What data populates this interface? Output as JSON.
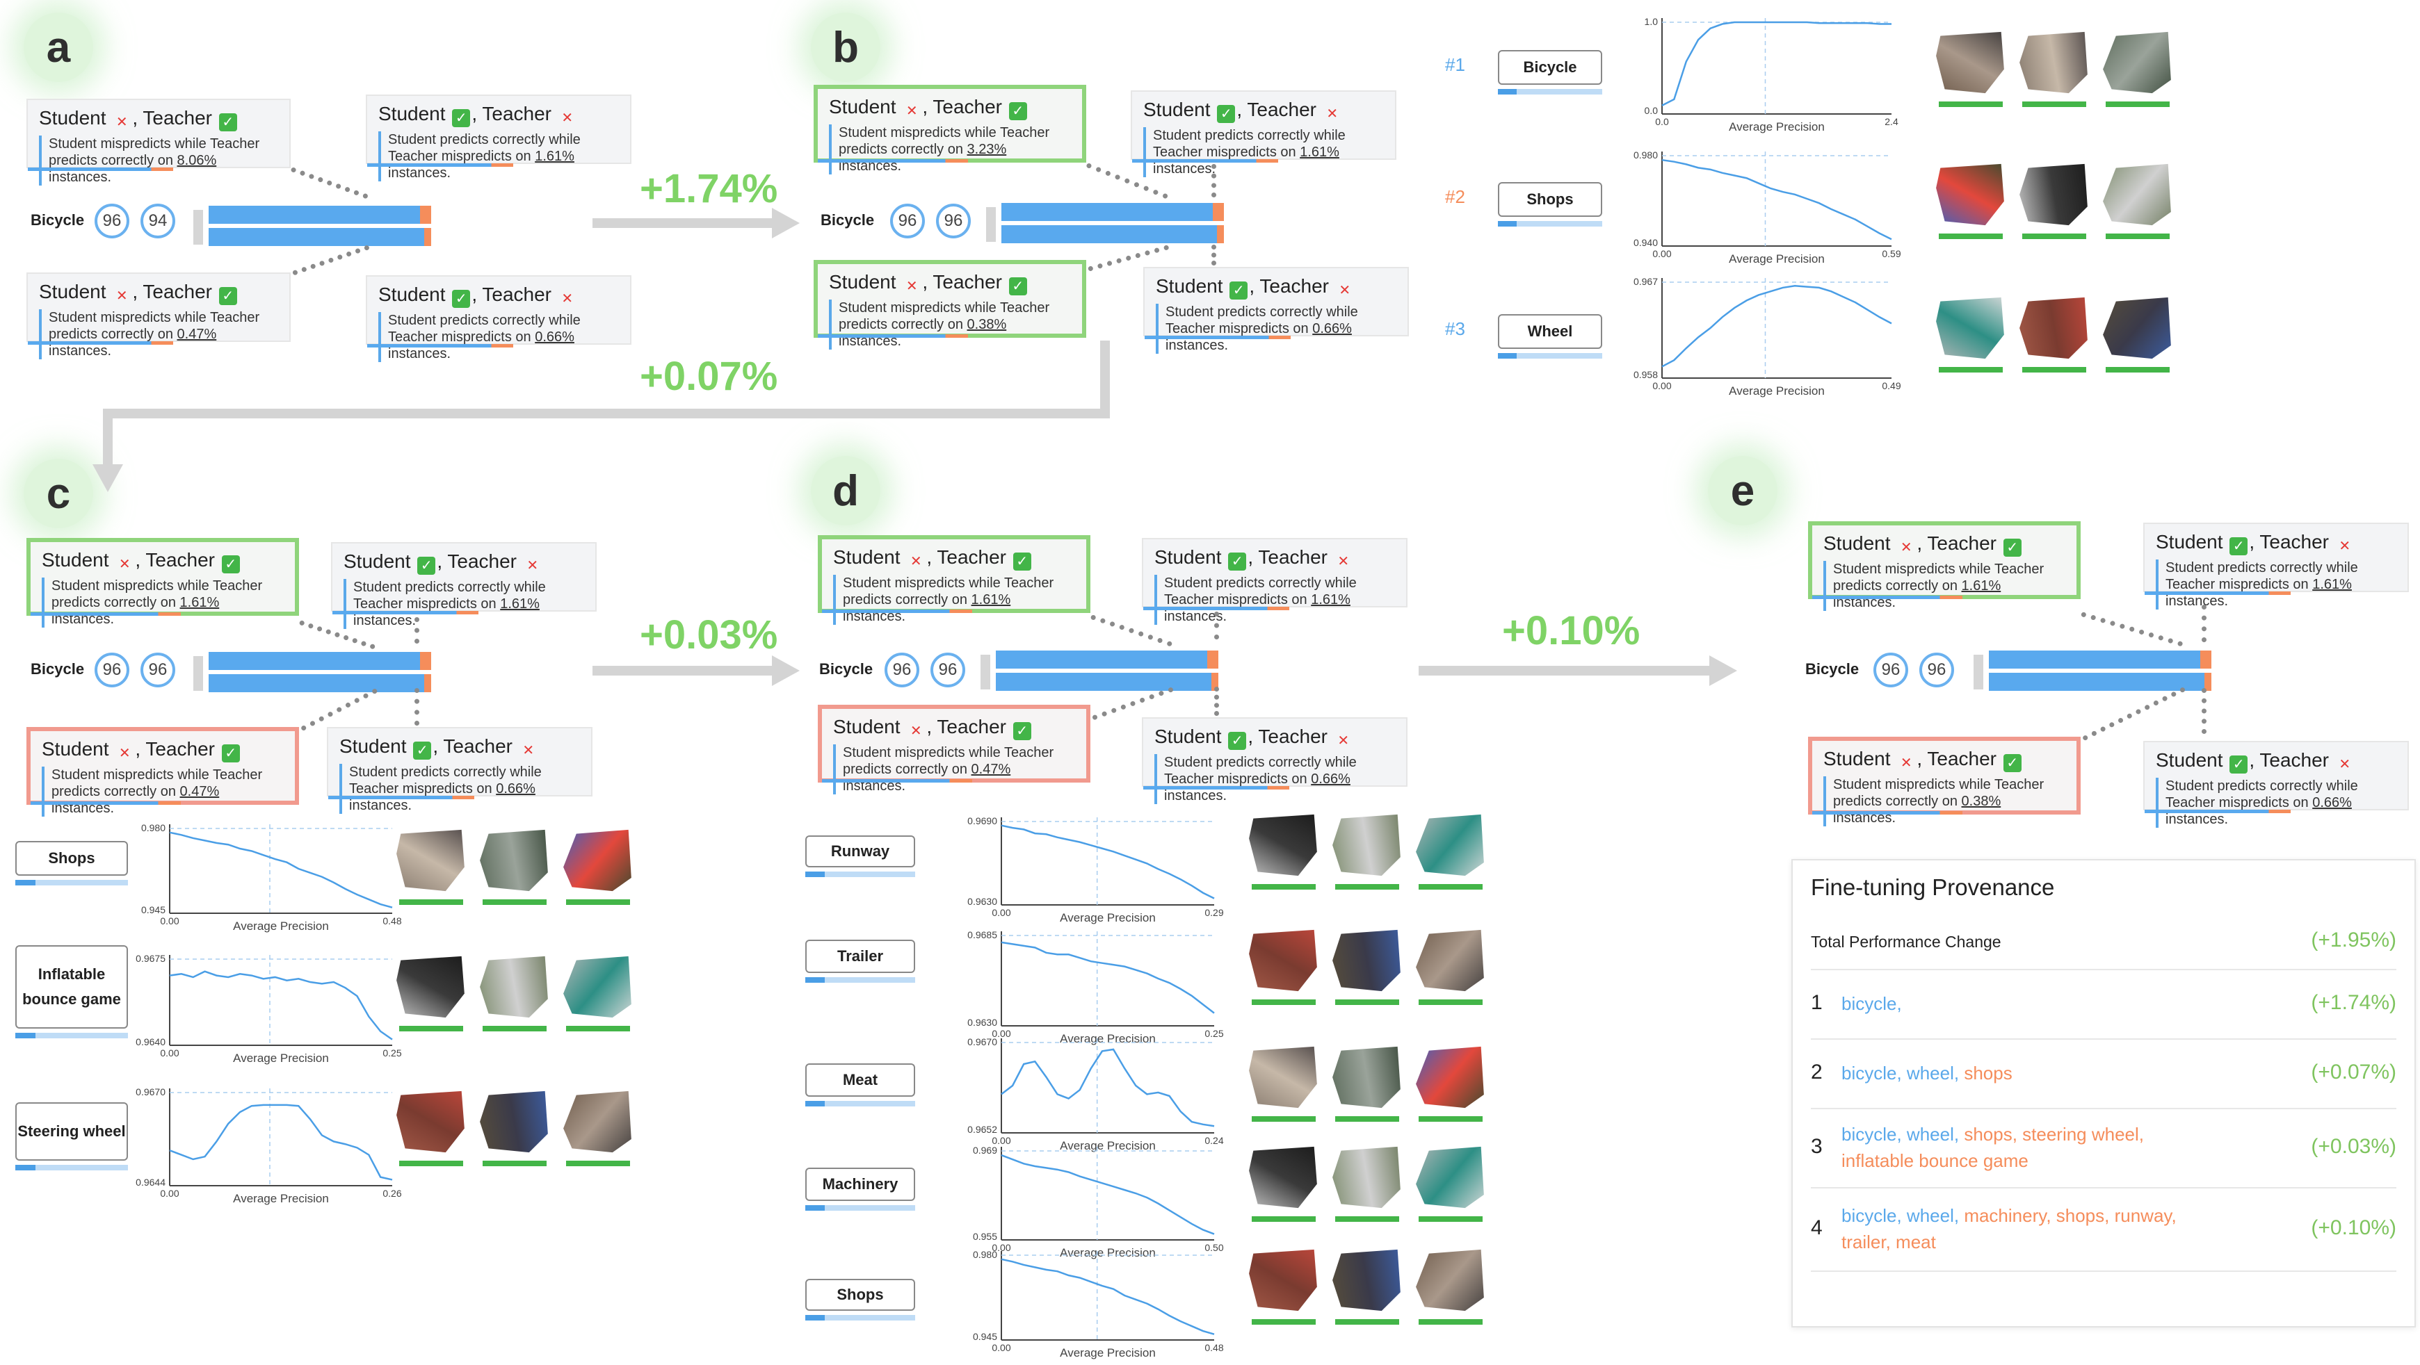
{
  "steps": [
    "a",
    "b",
    "c",
    "d",
    "e"
  ],
  "gains": [
    "+1.74%",
    "+0.07%",
    "+0.03%",
    "+0.10%"
  ],
  "row_label": "Bicycle",
  "panels": {
    "a": {
      "rings": [
        "96",
        "94"
      ],
      "cards": [
        {
          "title_pre": "Student ",
          "mark1": "✕",
          "title_mid": ", Teacher ",
          "mark2": "✓",
          "desc_pre": "Student mispredicts while Teacher predicts correctly on ",
          "pct": "8.06%",
          "desc_post": " instances."
        },
        {
          "title_pre": "Student ",
          "mark1": "✓",
          "title_mid": ", Teacher ",
          "mark2": "✕",
          "desc_pre": "Student predicts correctly while Teacher mispredicts on ",
          "pct": "1.61%",
          "desc_post": " instances."
        },
        {
          "title_pre": "Student ",
          "mark1": "✕",
          "title_mid": ", Teacher ",
          "mark2": "✓",
          "desc_pre": "Student mispredicts while Teacher predicts correctly on ",
          "pct": "0.47%",
          "desc_post": " instances."
        },
        {
          "title_pre": "Student ",
          "mark1": "✓",
          "title_mid": ", Teacher ",
          "mark2": "✕",
          "desc_pre": "Student predicts correctly while Teacher mispredicts on ",
          "pct": "0.66%",
          "desc_post": " instances."
        }
      ]
    },
    "b": {
      "rings": [
        "96",
        "96"
      ],
      "cards": [
        {
          "title_pre": "Student ",
          "mark1": "✕",
          "title_mid": ", Teacher ",
          "mark2": "✓",
          "desc_pre": "Student mispredicts while Teacher predicts correctly on ",
          "pct": "3.23%",
          "desc_post": " instances."
        },
        {
          "title_pre": "Student ",
          "mark1": "✓",
          "title_mid": ", Teacher ",
          "mark2": "✕",
          "desc_pre": "Student predicts correctly while Teacher mispredicts on ",
          "pct": "1.61%",
          "desc_post": " instances."
        },
        {
          "title_pre": "Student ",
          "mark1": "✕",
          "title_mid": ", Teacher ",
          "mark2": "✓",
          "desc_pre": "Student mispredicts while Teacher predicts correctly on ",
          "pct": "0.38%",
          "desc_post": " instances."
        },
        {
          "title_pre": "Student ",
          "mark1": "✓",
          "title_mid": ", Teacher ",
          "mark2": "✕",
          "desc_pre": "Student predicts correctly while Teacher mispredicts on ",
          "pct": "0.66%",
          "desc_post": " instances."
        }
      ]
    },
    "c": {
      "rings": [
        "96",
        "96"
      ],
      "cards": [
        {
          "title_pre": "Student ",
          "mark1": "✕",
          "title_mid": ", Teacher ",
          "mark2": "✓",
          "desc_pre": "Student mispredicts while Teacher predicts correctly on ",
          "pct": "1.61%",
          "desc_post": " instances."
        },
        {
          "title_pre": "Student ",
          "mark1": "✓",
          "title_mid": ", Teacher ",
          "mark2": "✕",
          "desc_pre": "Student predicts correctly while Teacher mispredicts on ",
          "pct": "1.61%",
          "desc_post": " instances."
        },
        {
          "title_pre": "Student ",
          "mark1": "✕",
          "title_mid": ", Teacher ",
          "mark2": "✓",
          "desc_pre": "Student mispredicts while Teacher predicts correctly on ",
          "pct": "0.47%",
          "desc_post": " instances."
        },
        {
          "title_pre": "Student ",
          "mark1": "✓",
          "title_mid": ", Teacher ",
          "mark2": "✕",
          "desc_pre": "Student predicts correctly while Teacher mispredicts on ",
          "pct": "0.66%",
          "desc_post": " instances."
        }
      ]
    },
    "d": {
      "rings": [
        "96",
        "96"
      ],
      "cards": [
        {
          "title_pre": "Student ",
          "mark1": "✕",
          "title_mid": ", Teacher ",
          "mark2": "✓",
          "desc_pre": "Student mispredicts while Teacher predicts correctly on ",
          "pct": "1.61%",
          "desc_post": " instances."
        },
        {
          "title_pre": "Student ",
          "mark1": "✓",
          "title_mid": ", Teacher ",
          "mark2": "✕",
          "desc_pre": "Student predicts correctly while Teacher mispredicts on ",
          "pct": "1.61%",
          "desc_post": " instances."
        },
        {
          "title_pre": "Student ",
          "mark1": "✕",
          "title_mid": ", Teacher ",
          "mark2": "✓",
          "desc_pre": "Student mispredicts while Teacher predicts correctly on ",
          "pct": "0.47%",
          "desc_post": " instances."
        },
        {
          "title_pre": "Student ",
          "mark1": "✓",
          "title_mid": ", Teacher ",
          "mark2": "✕",
          "desc_pre": "Student predicts correctly while Teacher mispredicts on ",
          "pct": "0.66%",
          "desc_post": " instances."
        }
      ]
    },
    "e": {
      "rings": [
        "96",
        "96"
      ],
      "cards": [
        {
          "title_pre": "Student ",
          "mark1": "✕",
          "title_mid": ", Teacher ",
          "mark2": "✓",
          "desc_pre": "Student mispredicts while Teacher predicts correctly on ",
          "pct": "1.61%",
          "desc_post": " instances."
        },
        {
          "title_pre": "Student ",
          "mark1": "✓",
          "title_mid": ", Teacher ",
          "mark2": "✕",
          "desc_pre": "Student predicts correctly while Teacher mispredicts on ",
          "pct": "1.61%",
          "desc_post": " instances."
        },
        {
          "title_pre": "Student ",
          "mark1": "✕",
          "title_mid": ", Teacher ",
          "mark2": "✓",
          "desc_pre": "Student mispredicts while Teacher predicts correctly on ",
          "pct": "0.38%",
          "desc_post": " instances."
        },
        {
          "title_pre": "Student ",
          "mark1": "✓",
          "title_mid": ", Teacher ",
          "mark2": "✕",
          "desc_pre": "Student predicts correctly while Teacher mispredicts on ",
          "pct": "0.66%",
          "desc_post": " instances."
        }
      ]
    }
  },
  "ranks": [
    "#1",
    "#2",
    "#3"
  ],
  "charts": {
    "axis_label": "Average Precision",
    "b": [
      {
        "cat": "Bicycle",
        "ymin": "0.0",
        "ymax": "1.0",
        "xmin": "0.0",
        "xmax": "2.4",
        "curve": [
          0.05,
          0.12,
          0.55,
          0.8,
          0.93,
          0.98,
          1,
          1,
          1,
          1,
          1,
          1,
          1,
          0.99,
          0.99,
          0.99,
          0.99,
          0.99,
          0.98,
          0.98
        ]
      },
      {
        "cat": "Shops",
        "ymin": "0.940",
        "ymax": "0.980",
        "xmin": "0.00",
        "xmax": "0.59",
        "curve": [
          0.95,
          0.93,
          0.9,
          0.86,
          0.84,
          0.8,
          0.77,
          0.74,
          0.68,
          0.62,
          0.58,
          0.55,
          0.5,
          0.45,
          0.38,
          0.32,
          0.26,
          0.18,
          0.1,
          0.03
        ]
      },
      {
        "cat": "Wheel",
        "ymin": "0.958",
        "ymax": "0.967",
        "xmin": "0.00",
        "xmax": "0.49",
        "curve": [
          0.08,
          0.15,
          0.28,
          0.4,
          0.5,
          0.62,
          0.72,
          0.8,
          0.86,
          0.9,
          0.94,
          0.96,
          0.95,
          0.94,
          0.9,
          0.84,
          0.78,
          0.7,
          0.62,
          0.55
        ]
      }
    ],
    "c": [
      {
        "cat": "Shops",
        "ymin": "0.945",
        "ymax": "0.980",
        "xmin": "0.00",
        "xmax": "0.48",
        "curve": [
          0.95,
          0.92,
          0.88,
          0.85,
          0.82,
          0.8,
          0.75,
          0.72,
          0.67,
          0.62,
          0.58,
          0.5,
          0.45,
          0.4,
          0.33,
          0.25,
          0.18,
          0.12,
          0.06,
          0.02
        ]
      },
      {
        "cat": "Inflatable bounce game",
        "ymin": "0.9640",
        "ymax": "0.9675",
        "xmin": "0.00",
        "xmax": "0.25",
        "curve": [
          0.8,
          0.82,
          0.78,
          0.85,
          0.8,
          0.78,
          0.82,
          0.8,
          0.76,
          0.78,
          0.74,
          0.76,
          0.72,
          0.7,
          0.72,
          0.65,
          0.55,
          0.3,
          0.12,
          0.02
        ]
      },
      {
        "cat": "Steering wheel",
        "ymin": "0.9644",
        "ymax": "0.9670",
        "xmin": "0.00",
        "xmax": "0.26",
        "curve": [
          0.35,
          0.3,
          0.25,
          0.28,
          0.45,
          0.65,
          0.78,
          0.85,
          0.86,
          0.86,
          0.86,
          0.85,
          0.7,
          0.52,
          0.45,
          0.42,
          0.38,
          0.3,
          0.05,
          0.02
        ]
      }
    ],
    "d": [
      {
        "cat": "Runway",
        "ymin": "0.9630",
        "ymax": "0.9690",
        "xmin": "0.00",
        "xmax": "0.29",
        "curve": [
          0.95,
          0.92,
          0.9,
          0.85,
          0.84,
          0.8,
          0.77,
          0.74,
          0.7,
          0.66,
          0.62,
          0.57,
          0.52,
          0.47,
          0.4,
          0.34,
          0.27,
          0.19,
          0.1,
          0.03
        ]
      },
      {
        "cat": "Trailer",
        "ymin": "0.9630",
        "ymax": "0.9685",
        "xmin": "0.00",
        "xmax": "0.25",
        "curve": [
          0.92,
          0.9,
          0.88,
          0.86,
          0.8,
          0.78,
          0.78,
          0.74,
          0.7,
          0.68,
          0.66,
          0.64,
          0.6,
          0.56,
          0.5,
          0.45,
          0.38,
          0.3,
          0.2,
          0.1
        ]
      },
      {
        "cat": "Meat",
        "ymin": "0.9652",
        "ymax": "0.9670",
        "xmin": "0.00",
        "xmax": "0.24",
        "curve": [
          0.4,
          0.5,
          0.75,
          0.78,
          0.6,
          0.4,
          0.35,
          0.45,
          0.7,
          0.9,
          0.92,
          0.7,
          0.5,
          0.4,
          0.42,
          0.38,
          0.2,
          0.08,
          0.05,
          0.03
        ]
      },
      {
        "cat": "Machinery",
        "ymin": "0.955",
        "ymax": "0.969",
        "xmin": "0.00",
        "xmax": "0.50",
        "curve": [
          0.95,
          0.9,
          0.85,
          0.82,
          0.8,
          0.78,
          0.75,
          0.7,
          0.66,
          0.62,
          0.58,
          0.54,
          0.5,
          0.45,
          0.38,
          0.3,
          0.22,
          0.14,
          0.07,
          0.02
        ]
      },
      {
        "cat": "Shops",
        "ymin": "0.945",
        "ymax": "0.980",
        "xmin": "0.00",
        "xmax": "0.48",
        "curve": [
          0.95,
          0.92,
          0.88,
          0.85,
          0.82,
          0.8,
          0.75,
          0.72,
          0.67,
          0.62,
          0.58,
          0.5,
          0.45,
          0.4,
          0.33,
          0.25,
          0.18,
          0.12,
          0.06,
          0.02
        ]
      }
    ]
  },
  "provenance": {
    "title": "Fine-tuning Provenance",
    "total_label": "Total Performance Change",
    "total_value": "(+1.95%)",
    "rows": [
      {
        "num": "1",
        "value": "(+1.74%)",
        "items": [
          {
            "t": "bicycle,",
            "c": "blue"
          }
        ]
      },
      {
        "num": "2",
        "value": "(+0.07%)",
        "items": [
          {
            "t": "bicycle, ",
            "c": "blue"
          },
          {
            "t": "wheel, ",
            "c": "blue"
          },
          {
            "t": "shops",
            "c": "orange"
          }
        ]
      },
      {
        "num": "3",
        "value": "(+0.03%)",
        "items": [
          {
            "t": "bicycle, ",
            "c": "blue"
          },
          {
            "t": "wheel, ",
            "c": "blue"
          },
          {
            "t": "shops, ",
            "c": "orange"
          },
          {
            "t": "steering wheel, ",
            "c": "orange"
          },
          {
            "t": "inflatable bounce game",
            "c": "orange"
          }
        ]
      },
      {
        "num": "4",
        "value": "(+0.10%)",
        "items": [
          {
            "t": "bicycle, ",
            "c": "blue"
          },
          {
            "t": "wheel, ",
            "c": "blue"
          },
          {
            "t": "machinery, ",
            "c": "orange"
          },
          {
            "t": "shops, ",
            "c": "orange"
          },
          {
            "t": "runway, ",
            "c": "orange"
          },
          {
            "t": "trailer, ",
            "c": "orange"
          },
          {
            "t": "meat",
            "c": "orange"
          }
        ]
      }
    ]
  },
  "colors": {
    "accent_blue": "#59a9ee",
    "accent_orange": "#f58d5b",
    "highlight_green": "#8fd47b",
    "highlight_red": "#f19a8e",
    "gain_green": "#7fd366"
  }
}
